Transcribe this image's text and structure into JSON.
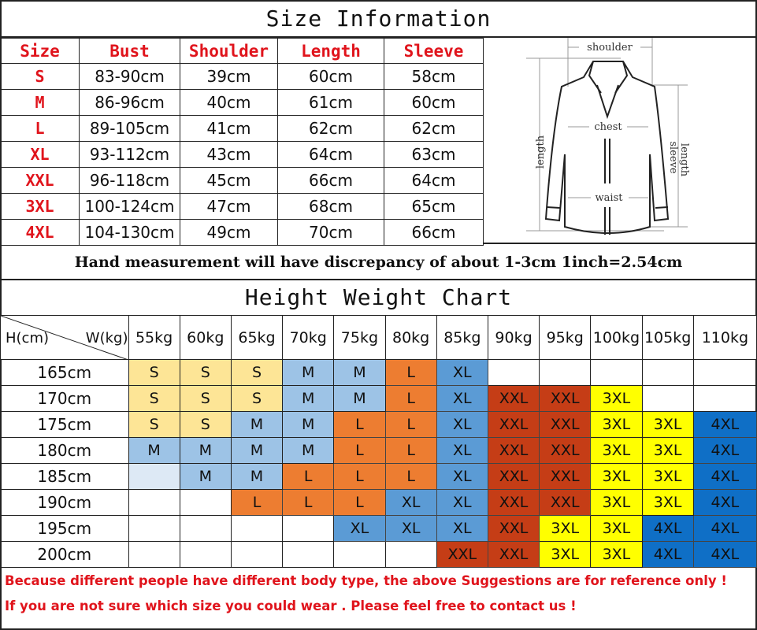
{
  "size_info": {
    "title": "Size Information",
    "headers": [
      "Size",
      "Bust",
      "Shoulder",
      "Length",
      "Sleeve"
    ],
    "rows": [
      [
        "S",
        "83-90cm",
        "39cm",
        "60cm",
        "58cm"
      ],
      [
        "M",
        "86-96cm",
        "40cm",
        "61cm",
        "60cm"
      ],
      [
        "L",
        "89-105cm",
        "41cm",
        "62cm",
        "62cm"
      ],
      [
        "XL",
        "93-112cm",
        "43cm",
        "64cm",
        "63cm"
      ],
      [
        "XXL",
        "96-118cm",
        "45cm",
        "66cm",
        "64cm"
      ],
      [
        "3XL",
        "100-124cm",
        "47cm",
        "68cm",
        "65cm"
      ],
      [
        "4XL",
        "104-130cm",
        "49cm",
        "70cm",
        "66cm"
      ]
    ],
    "diagram_labels": {
      "shoulder": "shoulder",
      "chest": "chest",
      "waist": "waist",
      "length": "length",
      "sleeve1": "sleeve",
      "sleeve2": "length"
    }
  },
  "note": "Hand measurement will have discrepancy of about 1-3cm  1inch=2.54cm",
  "height_weight": {
    "title": "Height Weight Chart",
    "corner_h": "H(cm)",
    "corner_w": "W(kg)",
    "weights": [
      "55kg",
      "60kg",
      "65kg",
      "70kg",
      "75kg",
      "80kg",
      "85kg",
      "90kg",
      "95kg",
      "100kg",
      "105kg",
      "110kg"
    ],
    "rows": [
      {
        "height": "165cm",
        "cells": [
          "S",
          "S",
          "S",
          "M",
          "M",
          "L",
          "XL",
          "",
          "",
          "",
          "",
          ""
        ]
      },
      {
        "height": "170cm",
        "cells": [
          "S",
          "S",
          "S",
          "M",
          "M",
          "L",
          "XL",
          "XXL",
          "XXL",
          "3XL",
          "",
          ""
        ]
      },
      {
        "height": "175cm",
        "cells": [
          "S",
          "S",
          "M",
          "M",
          "L",
          "L",
          "XL",
          "XXL",
          "XXL",
          "3XL",
          "3XL",
          "4XL"
        ]
      },
      {
        "height": "180cm",
        "cells": [
          "M",
          "M",
          "M",
          "M",
          "L",
          "L",
          "XL",
          "XXL",
          "XXL",
          "3XL",
          "3XL",
          "4XL"
        ]
      },
      {
        "height": "185cm",
        "cells": [
          "",
          "M",
          "M",
          "L",
          "L",
          "L",
          "XL",
          "XXL",
          "XXL",
          "3XL",
          "3XL",
          "4XL"
        ]
      },
      {
        "height": "190cm",
        "cells": [
          "",
          "",
          "L",
          "L",
          "L",
          "XL",
          "XL",
          "XXL",
          "XXL",
          "3XL",
          "3XL",
          "4XL"
        ]
      },
      {
        "height": "195cm",
        "cells": [
          "",
          "",
          "",
          "",
          "XL",
          "XL",
          "XL",
          "XXL",
          "3XL",
          "3XL",
          "4XL",
          "4XL"
        ]
      },
      {
        "height": "200cm",
        "cells": [
          "",
          "",
          "",
          "",
          "",
          "",
          "XXL",
          "XXL",
          "3XL",
          "3XL",
          "4XL",
          "4XL"
        ]
      }
    ],
    "size_colors": {
      "S": "#fde596",
      "M": "#9dc3e6",
      "L": "#ed7d31",
      "XL": "#5b9bd5",
      "XXL": "#c53d16",
      "3XL": "#ffff00",
      "4XL": "#0f6fc6",
      "blank_185_55": "#dde9f5"
    }
  },
  "footer": [
    "Because different people have different body type, the above Suggestions are for reference only !",
    "If you are not sure which size you could wear . Please feel free to contact us !"
  ]
}
